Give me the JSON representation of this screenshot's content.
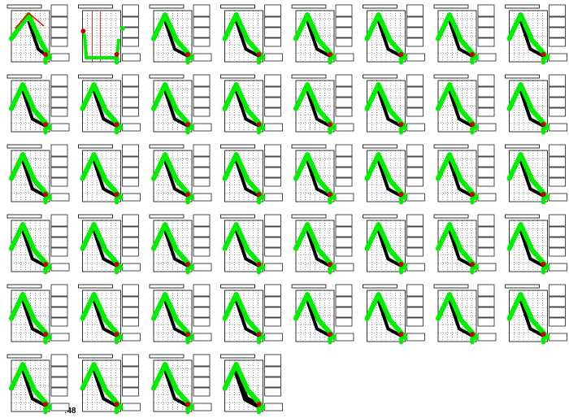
{
  "footer_label": ":48"
}
